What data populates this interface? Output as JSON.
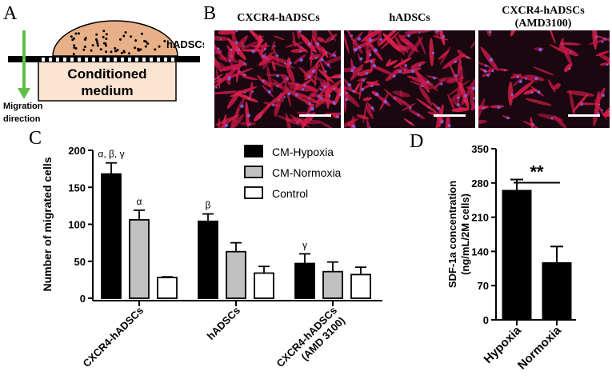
{
  "panels": {
    "a": "A",
    "b": "B",
    "c": "C",
    "d": "D"
  },
  "panel_a": {
    "cell_label": "hADSCs",
    "medium_line1": "Conditioned",
    "medium_line2": "medium",
    "migration_line1": "Migration",
    "migration_line2": "direction",
    "colors": {
      "dome": "#e8b088",
      "medium": "#fbe3d2",
      "arrow": "#5fbf4a"
    }
  },
  "panel_b": {
    "titles": [
      "CXCR4-hADSCs",
      "hADSCs",
      "CXCR4-hADSCs",
      "(AMD3100)"
    ]
  },
  "chart_data": [
    {
      "type": "bar",
      "ylabel": "Number of migrated cells",
      "ylim": [
        0,
        200
      ],
      "yticks": [
        0,
        50,
        100,
        150,
        200
      ],
      "categories": [
        "CXCR4-hADSCs",
        "hADSCs",
        "CXCR4-hADSCs (AMD 3100)"
      ],
      "category_label_lines": [
        [
          "CXCR4-hADSCs"
        ],
        [
          "hADSCs"
        ],
        [
          "CXCR4-hADSCs",
          "(AMD 3100)"
        ]
      ],
      "series": [
        {
          "name": "CM-Hypoxia",
          "color": "#000000",
          "values": [
            168,
            104,
            47
          ],
          "errors": [
            15,
            10,
            13
          ]
        },
        {
          "name": "CM-Normoxia",
          "color": "#c0c0c0",
          "values": [
            106,
            63,
            36
          ],
          "errors": [
            13,
            12,
            13
          ]
        },
        {
          "name": "Control",
          "color": "#ffffff",
          "values": [
            28,
            34,
            32
          ],
          "errors": [
            1,
            9,
            10
          ]
        }
      ],
      "annotations": [
        {
          "category": 0,
          "series": 0,
          "text": "α, β, γ"
        },
        {
          "category": 0,
          "series": 1,
          "text": "α"
        },
        {
          "category": 1,
          "series": 0,
          "text": "β"
        },
        {
          "category": 2,
          "series": 0,
          "text": "γ"
        }
      ],
      "legend_position": "top-center"
    },
    {
      "type": "bar",
      "ylabel_line1": "SDF-1a concentration",
      "ylabel_line2": "(ng/mL/2M cells)",
      "ylim": [
        0,
        350
      ],
      "yticks": [
        0,
        70,
        140,
        210,
        280,
        350
      ],
      "categories": [
        "Hypoxia",
        "Normoxia"
      ],
      "values": [
        265,
        117
      ],
      "errors": [
        22,
        33
      ],
      "color": "#000000",
      "significance": "**"
    }
  ]
}
